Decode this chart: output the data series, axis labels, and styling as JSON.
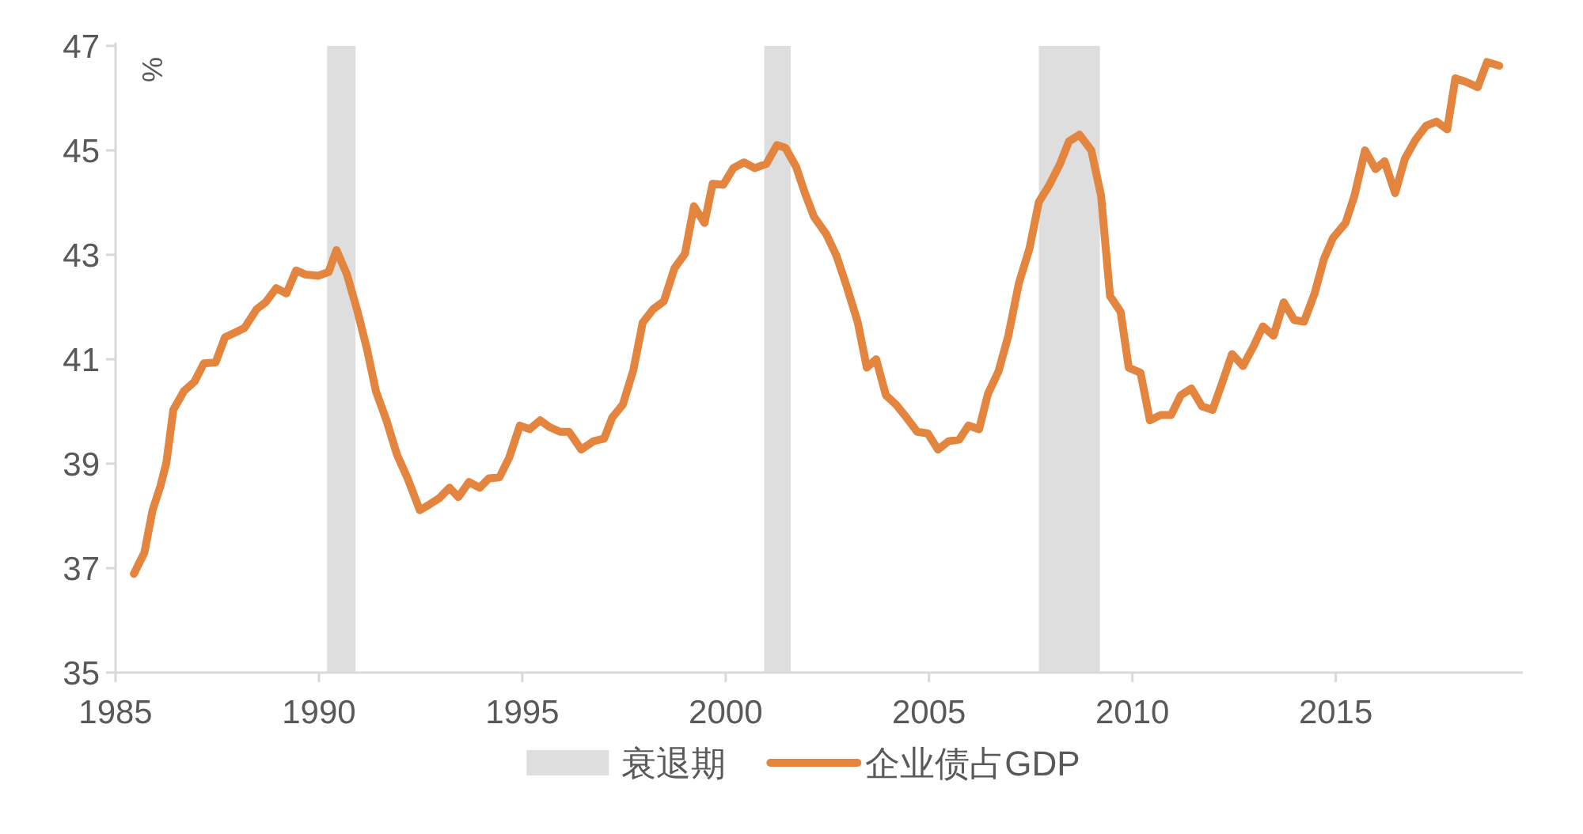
{
  "chart_data": {
    "type": "line",
    "ylabel": "%",
    "x": [
      1985.45,
      1985.71,
      1985.91,
      1986.1,
      1986.25,
      1986.42,
      1986.68,
      1986.94,
      1987.17,
      1987.46,
      1987.69,
      1987.91,
      1988.17,
      1988.47,
      1988.69,
      1988.95,
      1989.2,
      1989.44,
      1989.68,
      1989.98,
      1990.24,
      1990.43,
      1990.69,
      1990.95,
      1991.18,
      1991.4,
      1991.66,
      1991.92,
      1992.18,
      1992.48,
      1992.7,
      1992.96,
      1993.21,
      1993.43,
      1993.69,
      1993.95,
      1994.18,
      1994.44,
      1994.68,
      1994.94,
      1995.18,
      1995.44,
      1995.67,
      1995.93,
      1996.15,
      1996.45,
      1996.75,
      1997.01,
      1997.21,
      1997.47,
      1997.73,
      1997.96,
      1998.22,
      1998.48,
      1998.74,
      1999.0,
      1999.22,
      1999.48,
      1999.68,
      1999.94,
      2000.19,
      2000.45,
      2000.71,
      2001.0,
      2001.26,
      2001.47,
      2001.73,
      2001.95,
      2002.17,
      2002.47,
      2002.73,
      2002.99,
      2003.25,
      2003.47,
      2003.7,
      2003.94,
      2004.19,
      2004.45,
      2004.71,
      2004.97,
      2005.22,
      2005.48,
      2005.74,
      2005.97,
      2006.23,
      2006.45,
      2006.71,
      2006.95,
      2007.21,
      2007.47,
      2007.7,
      2007.96,
      2008.22,
      2008.44,
      2008.7,
      2008.99,
      2009.23,
      2009.45,
      2009.71,
      2009.91,
      2010.2,
      2010.43,
      2010.69,
      2010.95,
      2011.19,
      2011.45,
      2011.71,
      2011.97,
      2012.19,
      2012.45,
      2012.72,
      2012.98,
      2013.21,
      2013.47,
      2013.72,
      2013.98,
      2014.22,
      2014.48,
      2014.71,
      2014.93,
      2015.24,
      2015.46,
      2015.72,
      2015.98,
      2016.2,
      2016.46,
      2016.7,
      2016.96,
      2017.22,
      2017.48,
      2017.74,
      2017.94,
      2018.2,
      2018.49,
      2018.72,
      2019.02
    ],
    "series": [
      {
        "name": "企业债占GDP",
        "color": "#e4853f",
        "values": [
          36.89,
          37.3,
          38.11,
          38.56,
          39.02,
          40.03,
          40.39,
          40.57,
          40.92,
          40.94,
          41.42,
          41.5,
          41.6,
          41.96,
          42.09,
          42.36,
          42.26,
          42.7,
          42.62,
          42.6,
          42.67,
          43.09,
          42.62,
          41.91,
          41.2,
          40.39,
          39.83,
          39.17,
          38.72,
          38.11,
          38.21,
          38.34,
          38.54,
          38.36,
          38.65,
          38.54,
          38.72,
          38.74,
          39.12,
          39.73,
          39.66,
          39.83,
          39.7,
          39.61,
          39.61,
          39.27,
          39.43,
          39.48,
          39.88,
          40.13,
          40.79,
          41.7,
          41.96,
          42.11,
          42.74,
          43.02,
          43.93,
          43.61,
          44.36,
          44.34,
          44.66,
          44.77,
          44.66,
          44.74,
          45.1,
          45.05,
          44.69,
          44.18,
          43.73,
          43.4,
          42.97,
          42.36,
          41.7,
          40.84,
          41.0,
          40.31,
          40.13,
          39.88,
          39.61,
          39.58,
          39.27,
          39.43,
          39.46,
          39.73,
          39.66,
          40.34,
          40.77,
          41.45,
          42.46,
          43.12,
          44.01,
          44.34,
          44.74,
          45.17,
          45.3,
          45.0,
          44.13,
          42.21,
          41.91,
          40.84,
          40.74,
          39.83,
          39.93,
          39.93,
          40.31,
          40.44,
          40.1,
          40.03,
          40.51,
          41.1,
          40.87,
          41.25,
          41.63,
          41.45,
          42.09,
          41.75,
          41.72,
          42.26,
          42.92,
          43.32,
          43.61,
          44.13,
          45.0,
          44.64,
          44.79,
          44.18,
          44.84,
          45.2,
          45.47,
          45.55,
          45.4,
          46.38,
          46.31,
          46.21,
          46.69,
          46.62
        ]
      }
    ],
    "bands": [
      {
        "axis": "x",
        "from": 1990.2,
        "to": 1990.9,
        "label": "衰退期",
        "color": "#dedede"
      },
      {
        "axis": "x",
        "from": 2000.95,
        "to": 2001.6,
        "color": "#dedede"
      },
      {
        "axis": "x",
        "from": 2007.7,
        "to": 2009.2,
        "color": "#dedede"
      }
    ],
    "xlim": [
      1985,
      2019.6
    ],
    "xticks": [
      1985,
      1990,
      1995,
      2000,
      2005,
      2010,
      2015
    ],
    "ylim": [
      35,
      47
    ],
    "yticks": [
      35,
      37,
      39,
      41,
      43,
      45,
      47
    ],
    "legend": "bottom",
    "grid": false,
    "marker": "none",
    "line_style": "solid"
  }
}
